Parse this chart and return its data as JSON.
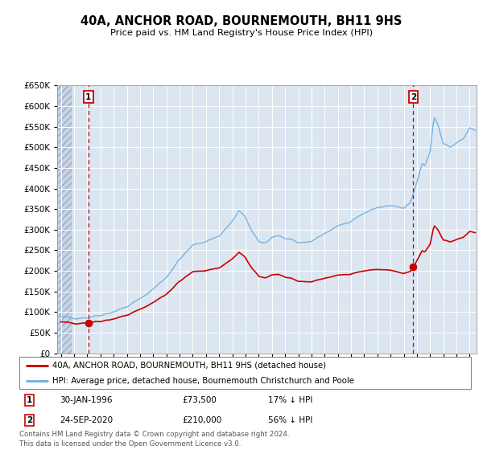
{
  "title": "40A, ANCHOR ROAD, BOURNEMOUTH, BH11 9HS",
  "subtitle": "Price paid vs. HM Land Registry's House Price Index (HPI)",
  "ytick_values": [
    0,
    50000,
    100000,
    150000,
    200000,
    250000,
    300000,
    350000,
    400000,
    450000,
    500000,
    550000,
    600000,
    650000
  ],
  "ylim": [
    0,
    650000
  ],
  "xlim_start": 1993.7,
  "xlim_end": 2025.5,
  "sale1_x": 1996.08,
  "sale1_y": 73500,
  "sale2_x": 2020.73,
  "sale2_y": 210000,
  "legend1": "40A, ANCHOR ROAD, BOURNEMOUTH, BH11 9HS (detached house)",
  "legend2": "HPI: Average price, detached house, Bournemouth Christchurch and Poole",
  "annot1_date": "30-JAN-1996",
  "annot1_price": "£73,500",
  "annot1_hpi": "17% ↓ HPI",
  "annot2_date": "24-SEP-2020",
  "annot2_price": "£210,000",
  "annot2_hpi": "56% ↓ HPI",
  "footer": "Contains HM Land Registry data © Crown copyright and database right 2024.\nThis data is licensed under the Open Government Licence v3.0.",
  "line_red_color": "#cc0000",
  "line_blue_color": "#6aaee0",
  "bg_plot_color": "#dce6f1",
  "grid_color": "#ffffff",
  "dashed_line_color": "#cc0000"
}
